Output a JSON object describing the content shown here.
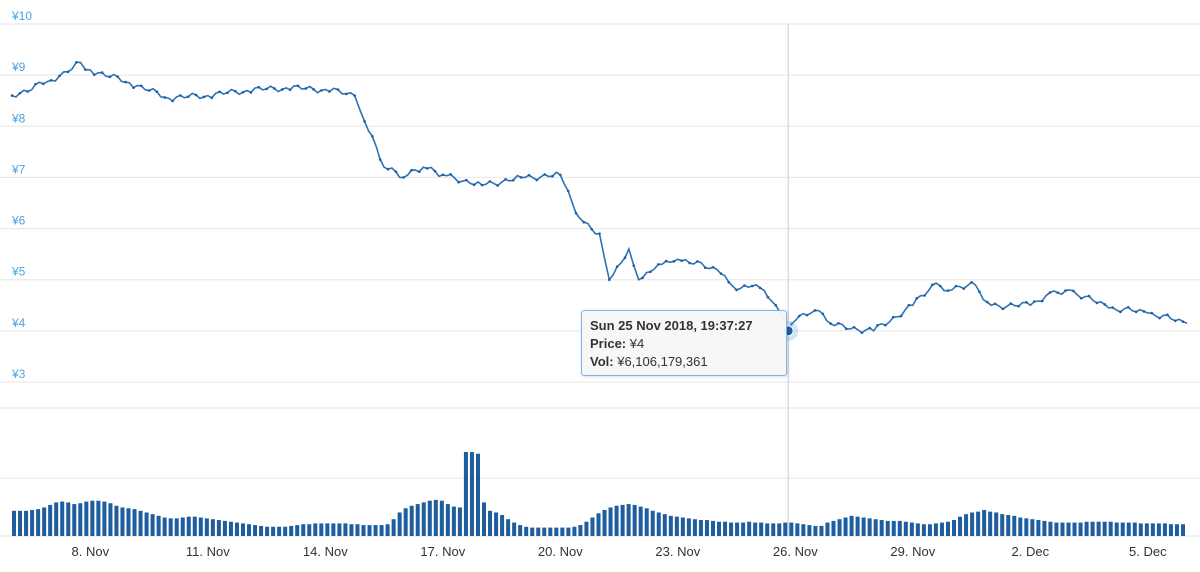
{
  "chart_data": [
    {
      "type": "line",
      "y_ticks": [
        "¥10",
        "¥9",
        "¥8",
        "¥7",
        "¥6",
        "¥5",
        "¥4",
        "¥3"
      ],
      "ylim": [
        3,
        10
      ],
      "x_ticks": [
        "8. Nov",
        "11. Nov",
        "14. Nov",
        "17. Nov",
        "20. Nov",
        "23. Nov",
        "26. Nov",
        "29. Nov",
        "2. Dec",
        "5. Dec"
      ],
      "xlim": [
        "2018-11-06",
        "2018-12-06"
      ],
      "grid": true,
      "series": [
        {
          "color": "#2b72b6",
          "points": [
            {
              "x": "2018-11-06",
              "y": 8.6
            },
            {
              "x": "2018-11-07",
              "y": 8.9
            },
            {
              "x": "2018-11-07T18:00",
              "y": 9.25
            },
            {
              "x": "2018-11-08",
              "y": 9.1
            },
            {
              "x": "2018-11-09",
              "y": 8.85
            },
            {
              "x": "2018-11-10",
              "y": 8.55
            },
            {
              "x": "2018-11-11",
              "y": 8.6
            },
            {
              "x": "2018-11-12",
              "y": 8.7
            },
            {
              "x": "2018-11-13",
              "y": 8.75
            },
            {
              "x": "2018-11-14",
              "y": 8.72
            },
            {
              "x": "2018-11-14T18:00",
              "y": 8.6
            },
            {
              "x": "2018-11-15",
              "y": 8.1
            },
            {
              "x": "2018-11-15T12:00",
              "y": 7.2
            },
            {
              "x": "2018-11-16",
              "y": 7.0
            },
            {
              "x": "2018-11-16T12:00",
              "y": 7.2
            },
            {
              "x": "2018-11-17",
              "y": 7.05
            },
            {
              "x": "2018-11-18",
              "y": 6.85
            },
            {
              "x": "2018-11-19",
              "y": 7.0
            },
            {
              "x": "2018-11-20",
              "y": 7.05
            },
            {
              "x": "2018-11-20T12:00",
              "y": 6.2
            },
            {
              "x": "2018-11-21",
              "y": 5.9
            },
            {
              "x": "2018-11-21T06:00",
              "y": 5.0
            },
            {
              "x": "2018-11-21T18:00",
              "y": 5.6
            },
            {
              "x": "2018-11-22",
              "y": 5.0
            },
            {
              "x": "2018-11-22T12:00",
              "y": 5.3
            },
            {
              "x": "2018-11-23",
              "y": 5.4
            },
            {
              "x": "2018-11-24",
              "y": 5.2
            },
            {
              "x": "2018-11-24T12:00",
              "y": 4.8
            },
            {
              "x": "2018-11-25",
              "y": 4.9
            },
            {
              "x": "2018-11-25T12:00",
              "y": 4.5
            },
            {
              "x": "2018-11-25T19:37:27",
              "y": 4.0
            },
            {
              "x": "2018-11-26",
              "y": 4.2
            },
            {
              "x": "2018-11-26T12:00",
              "y": 4.4
            },
            {
              "x": "2018-11-27",
              "y": 4.1
            },
            {
              "x": "2018-11-28",
              "y": 4.0
            },
            {
              "x": "2018-11-29",
              "y": 4.5
            },
            {
              "x": "2018-11-29T12:00",
              "y": 4.9
            },
            {
              "x": "2018-11-30",
              "y": 4.8
            },
            {
              "x": "2018-11-30T12:00",
              "y": 4.95
            },
            {
              "x": "2018-12-01",
              "y": 4.5
            },
            {
              "x": "2018-12-02",
              "y": 4.5
            },
            {
              "x": "2018-12-02T12:00",
              "y": 4.75
            },
            {
              "x": "2018-12-03",
              "y": 4.8
            },
            {
              "x": "2018-12-04",
              "y": 4.45
            },
            {
              "x": "2018-12-05",
              "y": 4.35
            },
            {
              "x": "2018-12-06",
              "y": 4.15
            }
          ]
        }
      ],
      "hover": {
        "x": "2018-11-25T19:37:27",
        "y": 4.0
      }
    },
    {
      "type": "bar",
      "color": "#1f5e9e",
      "volumes": [
        0.3,
        0.3,
        0.3,
        0.31,
        0.32,
        0.34,
        0.37,
        0.4,
        0.41,
        0.4,
        0.38,
        0.39,
        0.41,
        0.42,
        0.42,
        0.41,
        0.39,
        0.36,
        0.34,
        0.33,
        0.32,
        0.3,
        0.28,
        0.26,
        0.24,
        0.22,
        0.21,
        0.21,
        0.22,
        0.23,
        0.23,
        0.22,
        0.21,
        0.2,
        0.19,
        0.18,
        0.17,
        0.16,
        0.15,
        0.14,
        0.13,
        0.12,
        0.11,
        0.11,
        0.11,
        0.11,
        0.12,
        0.13,
        0.14,
        0.14,
        0.15,
        0.15,
        0.15,
        0.15,
        0.15,
        0.15,
        0.14,
        0.14,
        0.13,
        0.13,
        0.13,
        0.13,
        0.14,
        0.2,
        0.28,
        0.33,
        0.36,
        0.38,
        0.4,
        0.42,
        0.43,
        0.42,
        0.38,
        0.35,
        0.34,
        1.0,
        1.0,
        0.98,
        0.4,
        0.3,
        0.28,
        0.25,
        0.2,
        0.16,
        0.13,
        0.11,
        0.1,
        0.1,
        0.1,
        0.1,
        0.1,
        0.1,
        0.1,
        0.11,
        0.13,
        0.17,
        0.22,
        0.27,
        0.31,
        0.34,
        0.36,
        0.37,
        0.38,
        0.37,
        0.35,
        0.33,
        0.3,
        0.28,
        0.26,
        0.24,
        0.23,
        0.22,
        0.21,
        0.2,
        0.19,
        0.19,
        0.18,
        0.17,
        0.17,
        0.16,
        0.16,
        0.16,
        0.17,
        0.16,
        0.16,
        0.15,
        0.15,
        0.15,
        0.16,
        0.16,
        0.15,
        0.14,
        0.13,
        0.12,
        0.12,
        0.16,
        0.18,
        0.2,
        0.22,
        0.24,
        0.23,
        0.22,
        0.21,
        0.2,
        0.19,
        0.18,
        0.18,
        0.18,
        0.17,
        0.16,
        0.15,
        0.14,
        0.14,
        0.15,
        0.16,
        0.17,
        0.19,
        0.23,
        0.26,
        0.28,
        0.29,
        0.31,
        0.29,
        0.28,
        0.26,
        0.25,
        0.24,
        0.22,
        0.21,
        0.2,
        0.19,
        0.18,
        0.17,
        0.16,
        0.16,
        0.16,
        0.16,
        0.16,
        0.17,
        0.17,
        0.17,
        0.17,
        0.17,
        0.16,
        0.16,
        0.16,
        0.16,
        0.15,
        0.15,
        0.15,
        0.15,
        0.15,
        0.14,
        0.14,
        0.14
      ]
    }
  ],
  "tooltip": {
    "title": "Sun 25 Nov 2018, 19:37:27",
    "price_label": "Price:",
    "price_value": "¥4",
    "vol_label": "Vol:",
    "vol_value": "¥6,106,179,361"
  },
  "colors": {
    "line": "#2b72b6",
    "marker": "#1f5e9e",
    "volume": "#1f5e9e",
    "y_label": "#4aa3df",
    "crosshair": "#cccccc"
  }
}
